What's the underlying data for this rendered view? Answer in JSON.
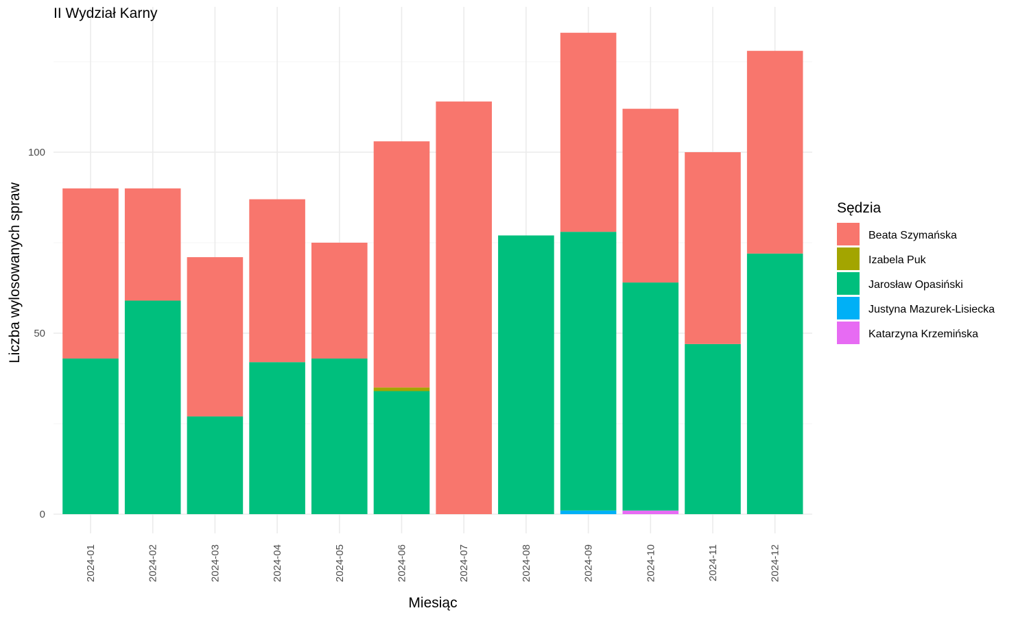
{
  "chart_data": {
    "type": "bar",
    "stacked": true,
    "title": "II Wydział Karny",
    "xlabel": "Miesiąc",
    "ylabel": "Liczba wylosowanych spraw",
    "ylim": [
      0,
      134
    ],
    "yticks": [
      0,
      50,
      100
    ],
    "grid": true,
    "legend_position": "right",
    "legend_title": "Sędzia",
    "categories": [
      "2024-01",
      "2024-02",
      "2024-03",
      "2024-04",
      "2024-05",
      "2024-06",
      "2024-07",
      "2024-08",
      "2024-09",
      "2024-10",
      "2024-11",
      "2024-12"
    ],
    "stack_order": [
      "Justyna Mazurek-Lisiecka",
      "Katarzyna Krzemińska",
      "Jarosław Opasiński",
      "Izabela Puk",
      "Beata Szymańska"
    ],
    "series": [
      {
        "name": "Beata Szymańska",
        "color": "#F8766D",
        "values": [
          47,
          31,
          44,
          45,
          32,
          68,
          114,
          0,
          55,
          48,
          53,
          56
        ]
      },
      {
        "name": "Izabela Puk",
        "color": "#A3A500",
        "values": [
          0,
          0,
          0,
          0,
          0,
          1,
          0,
          0,
          0,
          0,
          0,
          0
        ]
      },
      {
        "name": "Jarosław Opasiński",
        "color": "#00BF7D",
        "values": [
          43,
          59,
          27,
          42,
          43,
          34,
          0,
          77,
          77,
          63,
          47,
          72
        ]
      },
      {
        "name": "Justyna Mazurek-Lisiecka",
        "color": "#00B0F6",
        "values": [
          0,
          0,
          0,
          0,
          0,
          0,
          0,
          0,
          1,
          0,
          0,
          0
        ]
      },
      {
        "name": "Katarzyna Krzemińska",
        "color": "#E76BF3",
        "values": [
          0,
          0,
          0,
          0,
          0,
          0,
          0,
          0,
          0,
          1,
          0,
          0
        ]
      }
    ]
  }
}
